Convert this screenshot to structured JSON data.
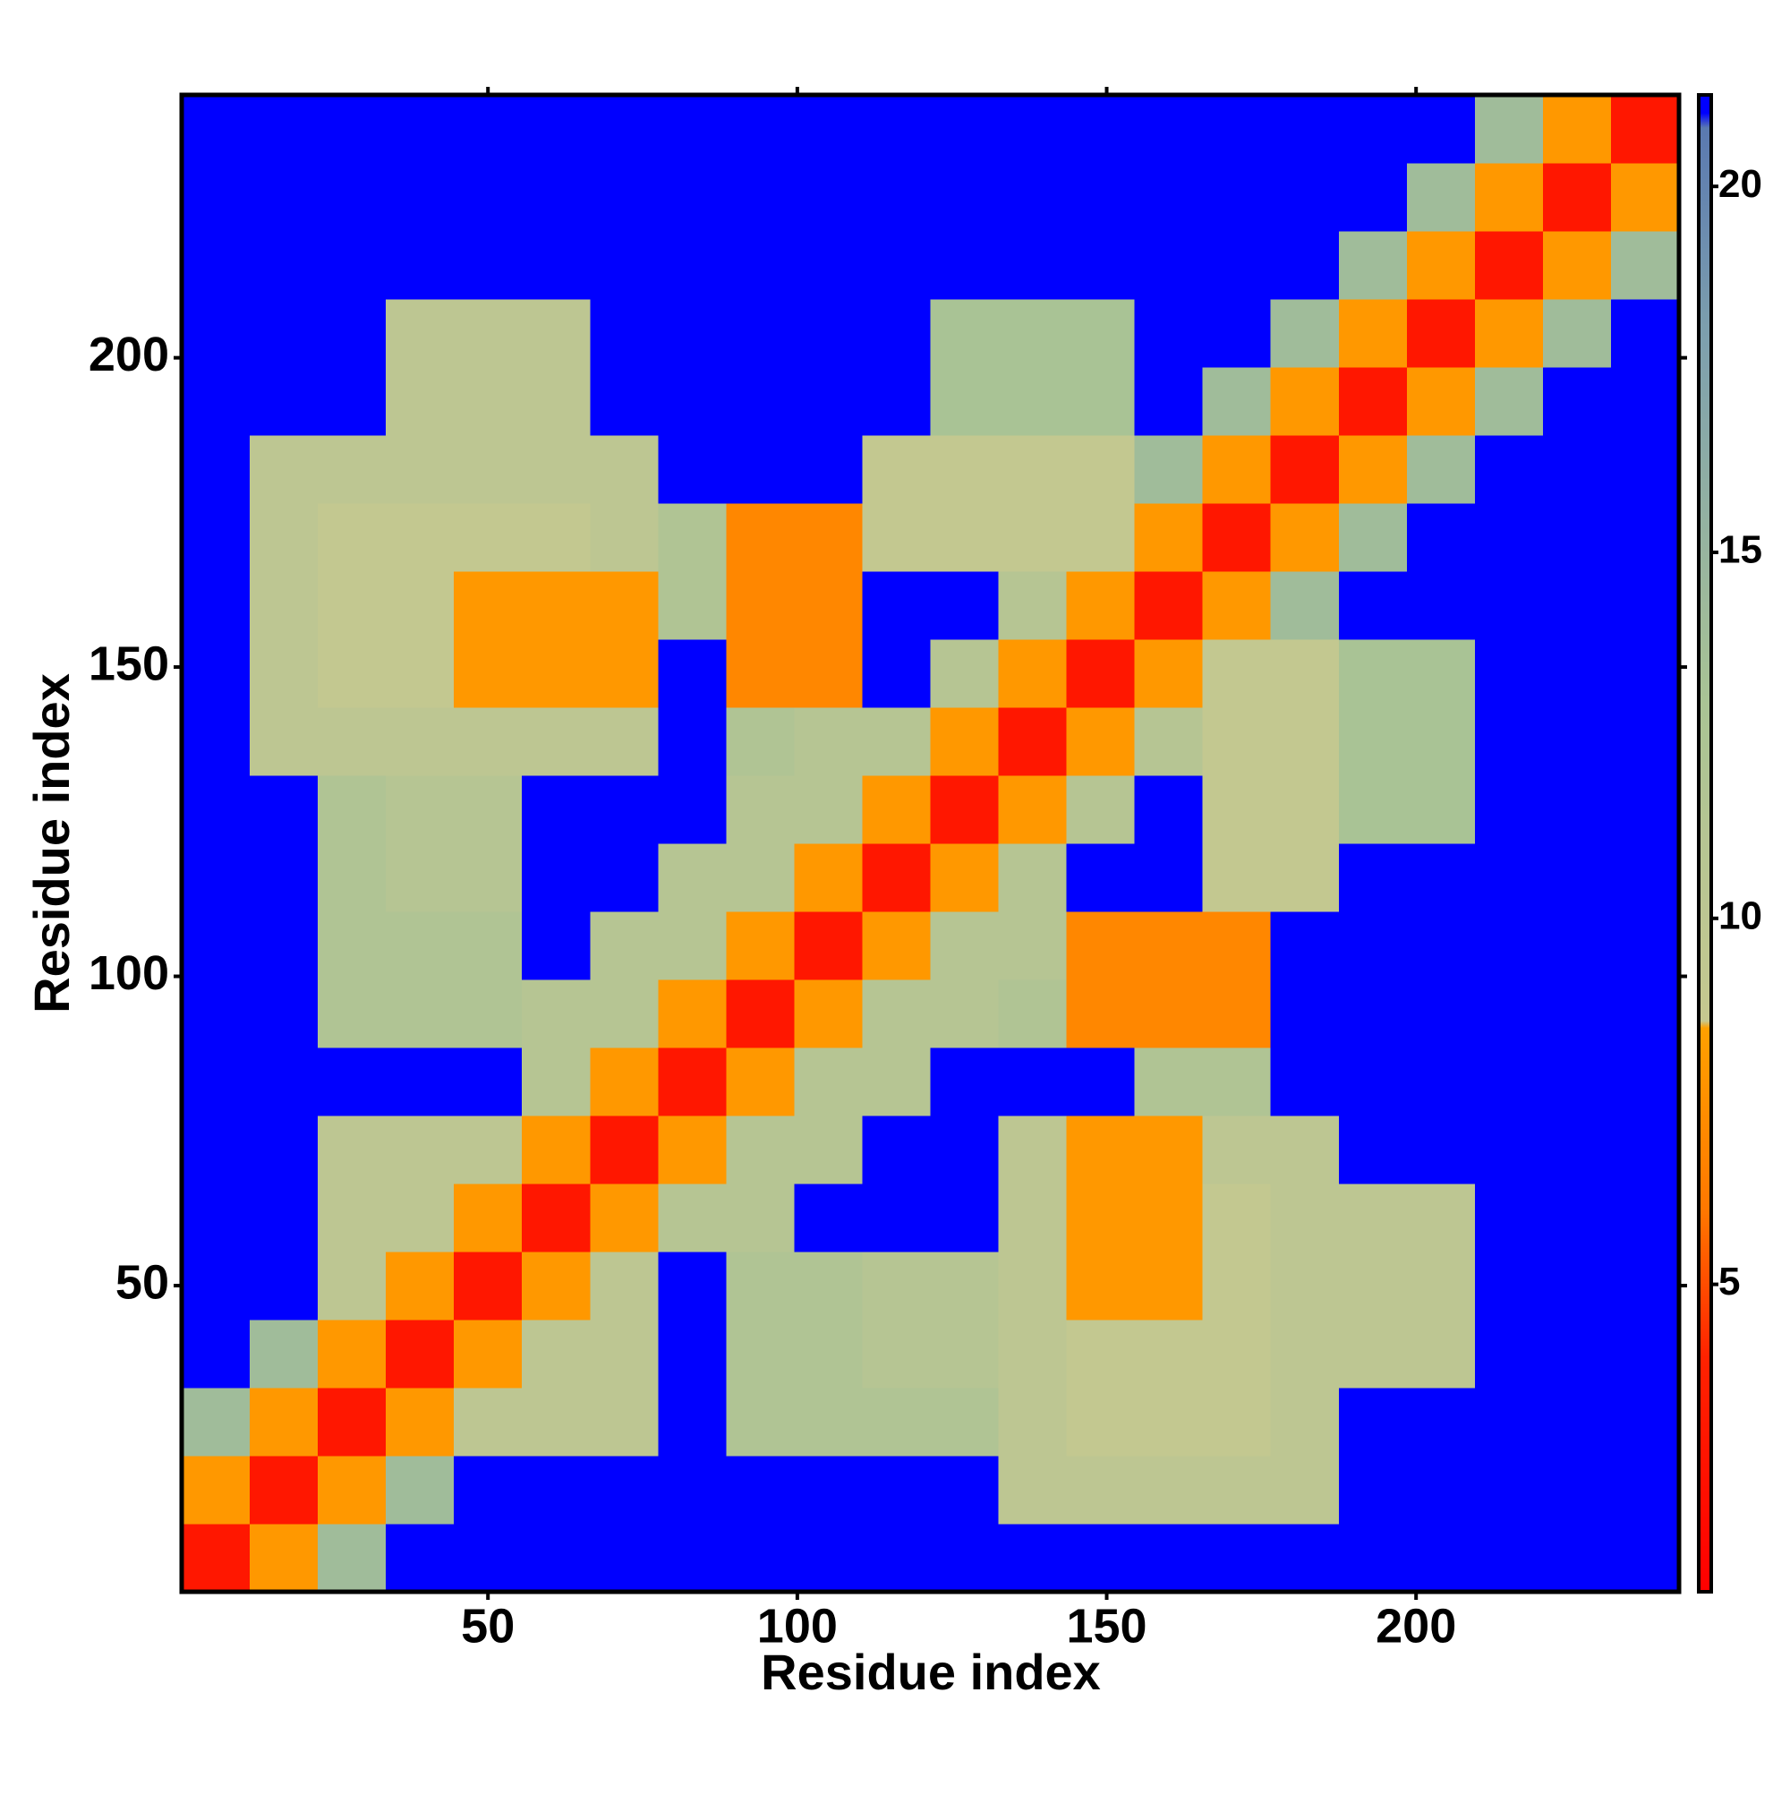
{
  "chart_data": {
    "type": "heatmap",
    "xlabel": "Residue index",
    "ylabel": "Residue index",
    "bins": [
      0.5,
      11.5,
      22.5,
      33.5,
      44.5,
      55.5,
      66.5,
      77.5,
      88.5,
      99.5,
      110.5,
      121.5,
      132.5,
      143.5,
      154.5,
      165.5,
      176.5,
      187.5,
      198.5,
      209.5,
      220.5,
      231.5,
      242.5
    ],
    "xlim": [
      0.5,
      242.5
    ],
    "ylim": [
      0.5,
      242.5
    ],
    "xticks": [
      50,
      100,
      150,
      200
    ],
    "yticks": [
      50,
      100,
      150,
      200
    ],
    "clim": [
      0.8,
      21.25
    ],
    "cticks": [
      5,
      10,
      15,
      20
    ],
    "colorscale": [
      [
        0.8,
        "#ff0000"
      ],
      [
        4,
        "#ff2200"
      ],
      [
        6,
        "#ff7700"
      ],
      [
        8.5,
        "#ffa000"
      ],
      [
        8.6,
        "#c6c890"
      ],
      [
        13,
        "#a9c395"
      ],
      [
        18,
        "#7d9fae"
      ],
      [
        20.8,
        "#5a79b0"
      ],
      [
        21,
        "#0000ff"
      ],
      [
        21.25,
        "#0000ff"
      ]
    ],
    "z": [
      [
        3,
        8,
        14,
        21,
        21,
        21,
        21,
        21,
        21,
        21,
        21,
        21,
        21,
        21,
        21,
        21,
        21,
        21,
        21,
        21,
        21,
        21
      ],
      [
        8,
        3,
        8,
        14,
        21,
        21,
        21,
        21,
        21,
        21,
        21,
        21,
        10,
        10,
        10,
        10,
        10,
        21,
        21,
        21,
        21,
        21
      ],
      [
        14,
        8,
        3,
        8,
        10,
        10,
        10,
        21,
        12,
        12,
        12,
        12,
        10,
        9,
        9,
        9,
        10,
        21,
        21,
        21,
        21,
        21
      ],
      [
        21,
        14,
        8,
        3,
        8,
        10,
        10,
        21,
        12,
        12,
        11,
        11,
        10,
        9,
        9,
        9,
        10,
        10,
        10,
        21,
        21,
        21
      ],
      [
        21,
        21,
        10,
        8,
        3,
        8,
        10,
        21,
        12,
        12,
        11,
        11,
        10,
        8,
        8,
        9,
        10,
        10,
        10,
        21,
        21,
        21
      ],
      [
        21,
        21,
        10,
        10,
        8,
        3,
        8,
        11,
        11,
        21,
        21,
        21,
        10,
        8,
        8,
        9,
        10,
        10,
        10,
        21,
        21,
        21
      ],
      [
        21,
        21,
        10,
        10,
        10,
        8,
        3,
        8,
        11,
        11,
        21,
        21,
        10,
        8,
        8,
        10,
        10,
        21,
        21,
        21,
        21,
        21
      ],
      [
        21,
        21,
        21,
        21,
        21,
        11,
        8,
        3,
        8,
        11,
        11,
        21,
        21,
        21,
        12,
        12,
        21,
        21,
        21,
        21,
        21,
        21
      ],
      [
        21,
        21,
        12,
        12,
        12,
        11,
        11,
        8,
        3,
        8,
        11,
        11,
        12,
        7,
        7,
        7,
        21,
        21,
        21,
        21,
        21,
        21
      ],
      [
        21,
        21,
        12,
        12,
        12,
        21,
        11,
        11,
        8,
        3,
        8,
        11,
        11,
        7,
        7,
        7,
        21,
        21,
        21,
        21,
        21,
        21
      ],
      [
        21,
        21,
        12,
        11,
        11,
        21,
        21,
        11,
        11,
        8,
        3,
        8,
        11,
        21,
        21,
        9,
        9,
        21,
        21,
        21,
        21,
        21
      ],
      [
        21,
        21,
        12,
        11,
        11,
        21,
        21,
        21,
        11,
        11,
        8,
        3,
        8,
        11,
        21,
        9,
        9,
        13,
        13,
        21,
        21,
        21
      ],
      [
        21,
        10,
        10,
        10,
        10,
        10,
        10,
        21,
        12,
        11,
        11,
        8,
        3,
        8,
        11,
        9,
        9,
        13,
        13,
        21,
        21,
        21
      ],
      [
        21,
        10,
        9,
        9,
        8,
        8,
        8,
        21,
        7,
        7,
        21,
        11,
        8,
        3,
        8,
        9,
        9,
        13,
        13,
        21,
        21,
        21
      ],
      [
        21,
        10,
        9,
        9,
        8,
        8,
        8,
        12,
        7,
        7,
        21,
        21,
        11,
        8,
        3,
        8,
        14,
        21,
        21,
        21,
        21,
        21
      ],
      [
        21,
        10,
        9,
        9,
        9,
        9,
        10,
        12,
        7,
        7,
        9,
        9,
        9,
        9,
        8,
        3,
        8,
        14,
        21,
        21,
        21,
        21
      ],
      [
        21,
        10,
        10,
        10,
        10,
        10,
        10,
        21,
        21,
        21,
        9,
        9,
        9,
        9,
        14,
        8,
        3,
        8,
        14,
        21,
        21,
        21
      ],
      [
        21,
        21,
        21,
        10,
        10,
        10,
        21,
        21,
        21,
        21,
        21,
        13,
        13,
        13,
        21,
        14,
        8,
        3,
        8,
        14,
        21,
        21
      ],
      [
        21,
        21,
        21,
        10,
        10,
        10,
        21,
        21,
        21,
        21,
        21,
        13,
        13,
        13,
        21,
        21,
        14,
        8,
        3,
        8,
        14,
        21
      ],
      [
        21,
        21,
        21,
        21,
        21,
        21,
        21,
        21,
        21,
        21,
        21,
        21,
        21,
        21,
        21,
        21,
        21,
        14,
        8,
        3,
        8,
        14
      ],
      [
        21,
        21,
        21,
        21,
        21,
        21,
        21,
        21,
        21,
        21,
        21,
        21,
        21,
        21,
        21,
        21,
        21,
        21,
        14,
        8,
        3,
        8
      ],
      [
        21,
        21,
        21,
        21,
        21,
        21,
        21,
        21,
        21,
        21,
        21,
        21,
        21,
        21,
        21,
        21,
        21,
        21,
        21,
        14,
        8,
        3
      ]
    ]
  }
}
